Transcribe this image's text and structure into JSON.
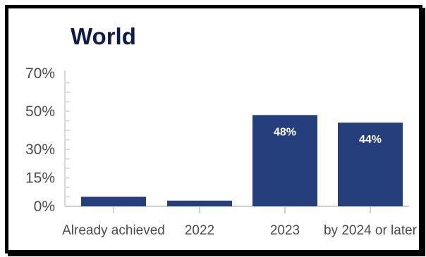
{
  "chart_data": {
    "type": "bar",
    "title": "World",
    "xlabel": "",
    "ylabel": "",
    "categories": [
      "Already achieved",
      "2022",
      "2023",
      "by 2024 or later"
    ],
    "values": [
      5,
      3,
      48,
      44
    ],
    "value_labels": [
      "",
      "",
      "48%",
      "44%"
    ],
    "y_ticks": [
      0,
      15,
      30,
      50,
      70
    ],
    "y_tick_labels": [
      "0%",
      "15%",
      "30%",
      "50%",
      "70%"
    ],
    "ylim": [
      0,
      70
    ],
    "grid": false,
    "bar_color": "#253f7d"
  }
}
